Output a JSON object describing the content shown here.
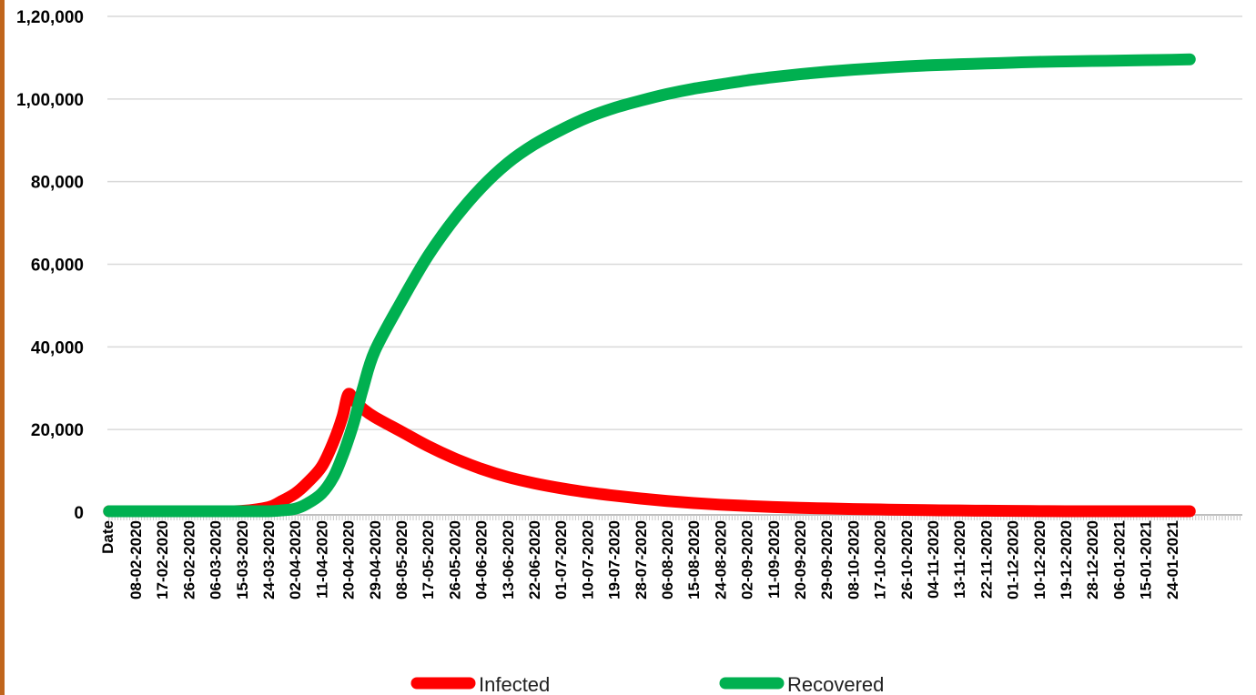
{
  "frame": {
    "accent_color": "#c0651c"
  },
  "chart_data": {
    "type": "line",
    "title": "",
    "xlabel": "",
    "ylabel": "",
    "ylim": [
      0,
      120000
    ],
    "grid": true,
    "legend_position": "bottom",
    "y_ticks": [
      "0",
      "20,000",
      "40,000",
      "60,000",
      "80,000",
      "1,00,000",
      "1,20,000"
    ],
    "y_tick_values": [
      0,
      20000,
      40000,
      60000,
      80000,
      100000,
      120000
    ],
    "x_first_label": "Date",
    "x_tick_labels": [
      "08-02-2020",
      "17-02-2020",
      "26-02-2020",
      "06-03-2020",
      "15-03-2020",
      "24-03-2020",
      "02-04-2020",
      "11-04-2020",
      "20-04-2020",
      "29-04-2020",
      "08-05-2020",
      "17-05-2020",
      "26-05-2020",
      "04-06-2020",
      "13-06-2020",
      "22-06-2020",
      "01-07-2020",
      "10-07-2020",
      "19-07-2020",
      "28-07-2020",
      "06-08-2020",
      "15-08-2020",
      "24-08-2020",
      "02-09-2020",
      "11-09-2020",
      "20-09-2020",
      "29-09-2020",
      "08-10-2020",
      "17-10-2020",
      "26-10-2020",
      "04-11-2020",
      "13-11-2020",
      "22-11-2020",
      "01-12-2020",
      "10-12-2020",
      "19-12-2020",
      "28-12-2020",
      "06-01-2021",
      "15-01-2021",
      "24-01-2021"
    ],
    "x": [
      "30-01-2020",
      "08-02-2020",
      "17-02-2020",
      "26-02-2020",
      "06-03-2020",
      "15-03-2020",
      "24-03-2020",
      "28-03-2020",
      "02-04-2020",
      "06-04-2020",
      "11-04-2020",
      "15-04-2020",
      "18-04-2020",
      "20-04-2020",
      "22-04-2020",
      "25-04-2020",
      "29-04-2020",
      "08-05-2020",
      "17-05-2020",
      "26-05-2020",
      "04-06-2020",
      "13-06-2020",
      "22-06-2020",
      "01-07-2020",
      "10-07-2020",
      "19-07-2020",
      "28-07-2020",
      "06-08-2020",
      "15-08-2020",
      "24-08-2020",
      "02-09-2020",
      "11-09-2020",
      "20-09-2020",
      "29-09-2020",
      "08-10-2020",
      "17-10-2020",
      "26-10-2020",
      "04-11-2020",
      "13-11-2020",
      "22-11-2020",
      "01-12-2020",
      "10-12-2020",
      "19-12-2020",
      "28-12-2020",
      "06-01-2021",
      "15-01-2021",
      "24-01-2021",
      "30-01-2021"
    ],
    "series": [
      {
        "name": "Infected",
        "color": "#ff0000",
        "values": [
          0,
          0,
          0,
          0,
          50,
          300,
          1200,
          2500,
          4500,
          7000,
          11000,
          17000,
          23000,
          28500,
          27000,
          25000,
          23000,
          19500,
          16000,
          13000,
          10500,
          8500,
          7000,
          5800,
          4800,
          4000,
          3300,
          2700,
          2200,
          1800,
          1500,
          1250,
          1050,
          900,
          750,
          650,
          550,
          470,
          400,
          350,
          300,
          260,
          230,
          200,
          180,
          160,
          140,
          130
        ]
      },
      {
        "name": "Recovered",
        "color": "#00b050",
        "values": [
          0,
          0,
          0,
          0,
          0,
          50,
          200,
          400,
          800,
          2000,
          4500,
          8500,
          13500,
          17500,
          22000,
          30000,
          39000,
          51000,
          62000,
          71000,
          78500,
          84500,
          89000,
          92500,
          95500,
          97800,
          99600,
          101200,
          102500,
          103500,
          104500,
          105300,
          106000,
          106600,
          107100,
          107500,
          107900,
          108200,
          108400,
          108600,
          108800,
          109000,
          109100,
          109200,
          109300,
          109400,
          109500,
          109600
        ]
      }
    ]
  }
}
